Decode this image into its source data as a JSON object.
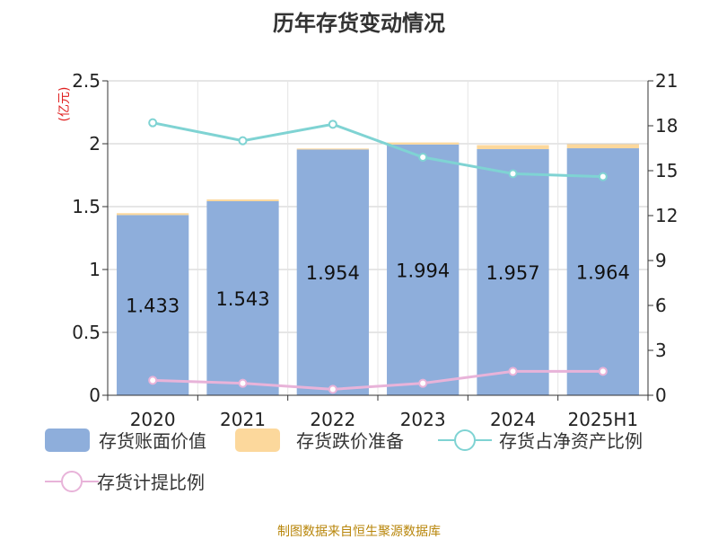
{
  "chart_data": {
    "type": "bar",
    "title": "历年存货变动情况",
    "categories": [
      "2020",
      "2021",
      "2022",
      "2023",
      "2024",
      "2025H1"
    ],
    "left_axis": {
      "unit": "(亿元)",
      "ylim": [
        0,
        2.5
      ],
      "ticks": [
        "0",
        "0.5",
        "1",
        "1.5",
        "2",
        "2.5"
      ]
    },
    "right_axis": {
      "unit": "%",
      "ylim": [
        0,
        21
      ],
      "ticks": [
        "0",
        "3",
        "6",
        "9",
        "12",
        "15",
        "18",
        "21"
      ]
    },
    "series": [
      {
        "name": "存货账面价值",
        "type": "bar",
        "axis": "left",
        "color": "#8eaedb",
        "values": [
          1.433,
          1.543,
          1.954,
          1.994,
          1.957,
          1.964
        ],
        "labels": [
          "1.433",
          "1.543",
          "1.954",
          "1.994",
          "1.957",
          "1.964"
        ]
      },
      {
        "name": "存货跌价准备",
        "type": "bar",
        "axis": "left",
        "stacked": true,
        "color": "#fcd89c",
        "values": [
          0.015,
          0.014,
          0.008,
          0.016,
          0.032,
          0.032
        ]
      },
      {
        "name": "存货占净资产比例",
        "type": "line",
        "axis": "right",
        "color": "#7fd3d3",
        "values": [
          18.2,
          17.0,
          18.1,
          15.9,
          14.8,
          14.6
        ]
      },
      {
        "name": "存货计提比例",
        "type": "line",
        "axis": "right",
        "color": "#e8b3d9",
        "values": [
          1.0,
          0.8,
          0.4,
          0.8,
          1.6,
          1.6
        ]
      }
    ],
    "grid": true,
    "legend_position": "bottom"
  },
  "source": "制图数据来自恒生聚源数据库"
}
